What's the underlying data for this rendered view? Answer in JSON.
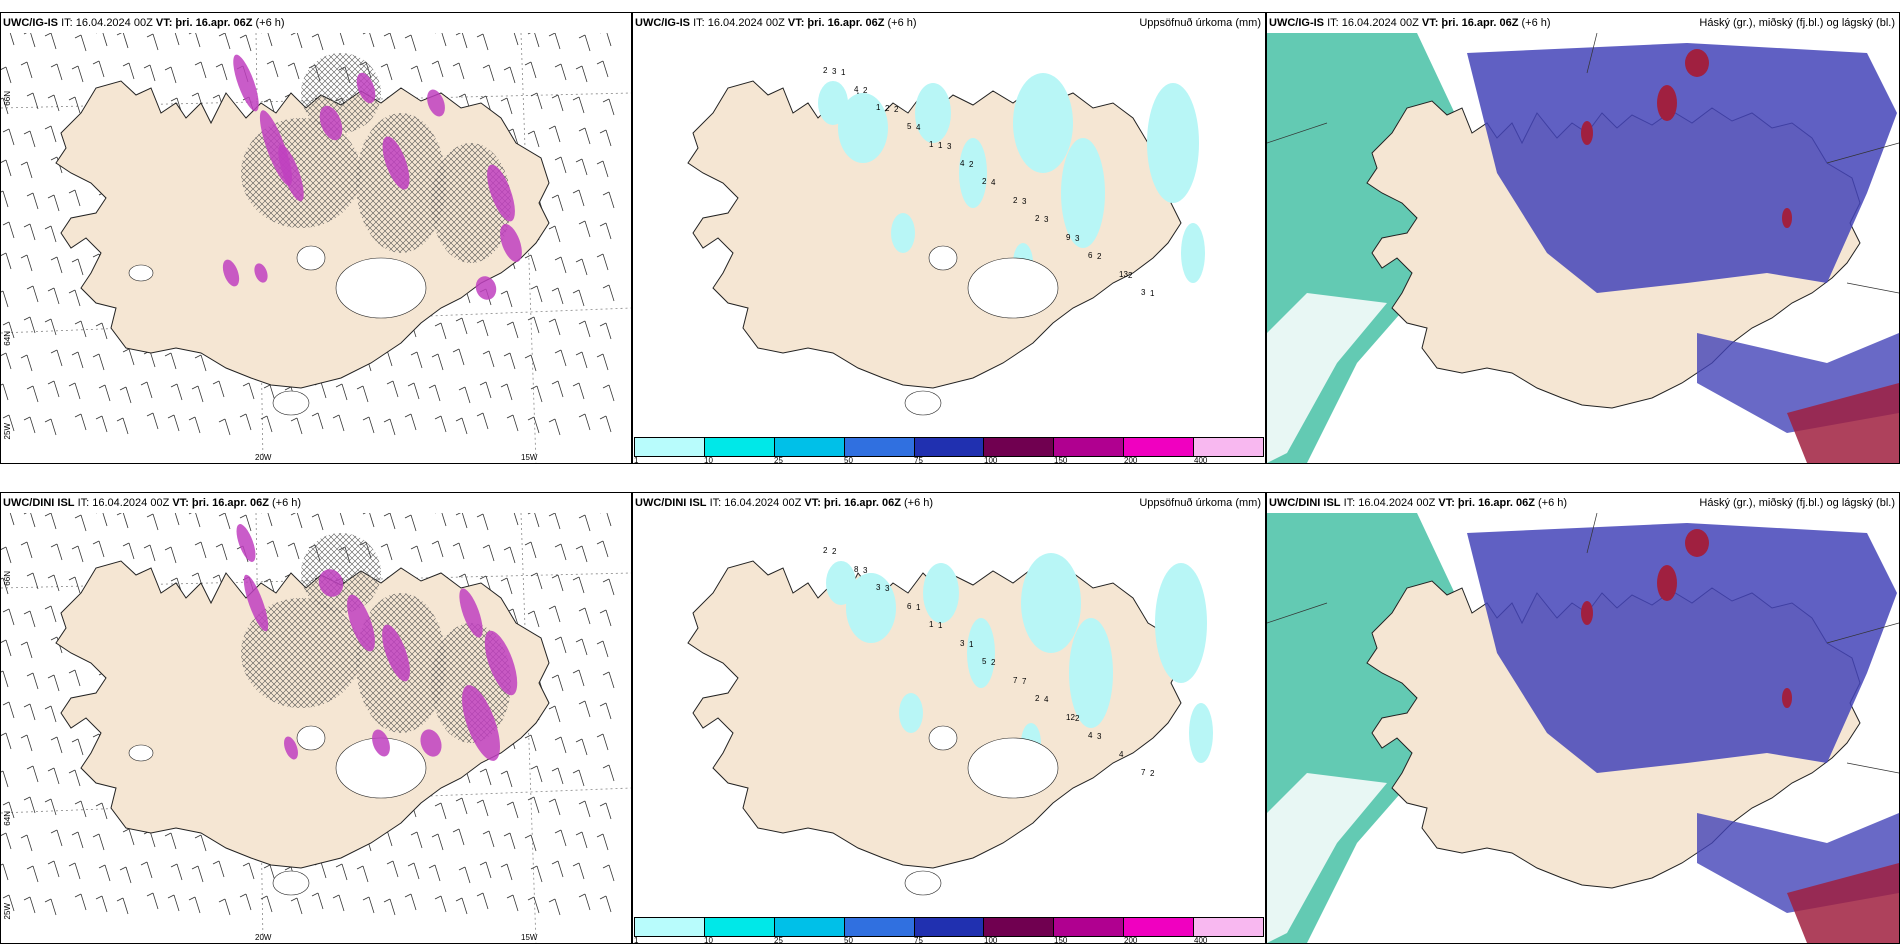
{
  "rows": [
    {
      "model": "UWC/IG-IS",
      "it_label": "IT: 16.04.2024 00Z",
      "vt_label": "VT: þri. 16.apr. 06Z",
      "lead": "(+6 h)"
    },
    {
      "model": "UWC/DINI ISL",
      "it_label": "IT: 16.04.2024 00Z",
      "vt_label": "VT: þri. 16.apr. 06Z",
      "lead": "(+6 h)"
    }
  ],
  "precip_title": "Uppsöfnuð úrkoma (mm)",
  "cloud_title": "Háský (gr.), miðský (fj.bl.) og lágský (bl.)",
  "lat_labels": [
    "66N",
    "64N"
  ],
  "lon_labels": [
    "20W",
    "15W"
  ],
  "corner_lon": "25W",
  "colorbar": {
    "ticks": [
      "1",
      "10",
      "25",
      "50",
      "75",
      "100",
      "150",
      "200",
      "400",
      ""
    ],
    "colors": [
      "#b8fcfc",
      "#00e8e8",
      "#00c0e8",
      "#3070e0",
      "#2030b0",
      "#700050",
      "#b00090",
      "#f000c0",
      "#f8b8f0"
    ]
  },
  "precip_numbers_top": [
    "2",
    "1",
    "1",
    "2",
    "2",
    "6",
    "3",
    "4",
    "5",
    "4",
    "2",
    "9",
    "13",
    "3",
    "2",
    "1",
    "4",
    "3",
    "2",
    "1",
    "2",
    "4",
    "2",
    "3",
    "3",
    "2",
    "1",
    "2",
    "3"
  ],
  "precip_numbers_bottom": [
    "2",
    "3",
    "1",
    "5",
    "2",
    "4",
    "7",
    "8",
    "6",
    "3",
    "7",
    "12",
    "4",
    "2",
    "3",
    "1",
    "2",
    "4",
    "3",
    "2",
    "3",
    "1",
    "1",
    "7",
    "2"
  ],
  "colors": {
    "land": "#f5e6d3",
    "coast": "#222222",
    "precip": "#b8f6f6",
    "magenta": "#c040c0",
    "cloud_high": "#4444b8",
    "cloud_mid": "#2fb89a",
    "cloud_low": "#a02040"
  }
}
